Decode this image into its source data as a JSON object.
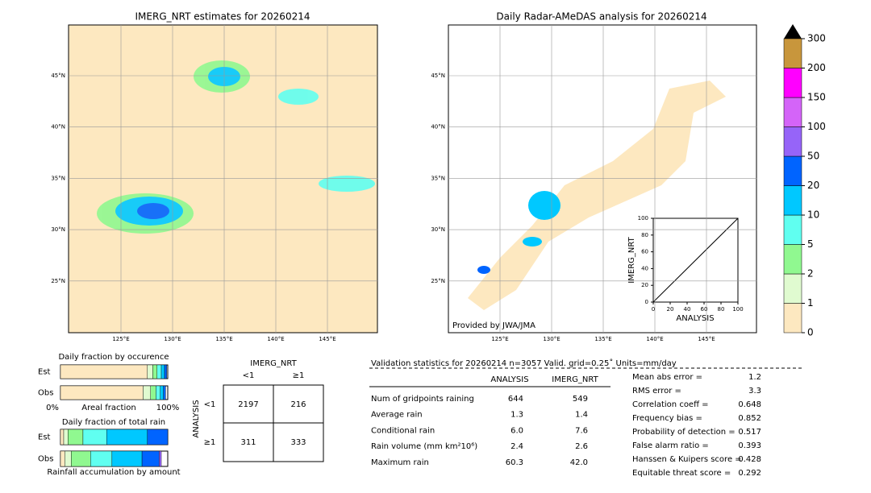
{
  "left_map": {
    "title": "IMERG_NRT estimates for 20260214",
    "lat_labels": [
      "45°N",
      "40°N",
      "35°N",
      "30°N",
      "25°N"
    ],
    "lon_labels": [
      "125°E",
      "130°E",
      "135°E",
      "140°E",
      "145°E"
    ]
  },
  "right_map": {
    "title": "Daily Radar-AMeDAS analysis for 20260214",
    "credit": "Provided by JWA/JMA",
    "lat_labels": [
      "45°N",
      "40°N",
      "35°N",
      "30°N",
      "25°N"
    ],
    "lon_labels": [
      "125°E",
      "130°E",
      "135°E",
      "140°E",
      "145°E"
    ]
  },
  "colorbar": {
    "ticks": [
      0,
      1,
      2,
      5,
      10,
      20,
      50,
      100,
      150,
      200,
      300
    ],
    "colors": [
      "#fde8c0",
      "#e0fbd0",
      "#90f890",
      "#60fff0",
      "#00c8ff",
      "#0064ff",
      "#9664f8",
      "#d464f8",
      "#ff00ff",
      "#c8963c"
    ]
  },
  "inset": {
    "xlabel": "ANALYSIS",
    "ylabel": "IMERG_NRT",
    "ticks": [
      0,
      20,
      40,
      60,
      80,
      100
    ]
  },
  "occurrence": {
    "title": "Daily fraction by occurence",
    "rows": [
      "Est",
      "Obs"
    ],
    "axis_left": "0%",
    "axis_label": "Areal fraction",
    "axis_right": "100%",
    "est": [
      81,
      5,
      4,
      4,
      3,
      2
    ],
    "obs": [
      77,
      7,
      5,
      4,
      3,
      2
    ]
  },
  "total_rain": {
    "title": "Daily fraction of total rain",
    "rows": [
      "Est",
      "Obs"
    ],
    "axis_label": "Rainfall accumulation by amount",
    "est": [
      3,
      4,
      14,
      22,
      38,
      19
    ],
    "obs": [
      4,
      6,
      18,
      20,
      28,
      16,
      2
    ]
  },
  "contingency": {
    "col_title": "IMERG_NRT",
    "row_title": "ANALYSIS",
    "cols": [
      "<1",
      "≥1"
    ],
    "rows": [
      "<1",
      "≥1"
    ],
    "cells": [
      [
        "2197",
        "216"
      ],
      [
        "311",
        "333"
      ]
    ]
  },
  "validation": {
    "header": "Validation statistics for 20260214  n=3057 Valid. grid=0.25˚ Units=mm/day",
    "columns": [
      "ANALYSIS",
      "IMERG_NRT"
    ],
    "rows": [
      {
        "label": "Num of gridpoints raining",
        "values": [
          "644",
          "549"
        ]
      },
      {
        "label": "Average rain",
        "values": [
          "1.3",
          "1.4"
        ]
      },
      {
        "label": "Conditional rain",
        "values": [
          "6.0",
          "7.6"
        ]
      },
      {
        "label": "Rain volume (mm km²10⁶)",
        "values": [
          "2.4",
          "2.6"
        ]
      },
      {
        "label": "Maximum rain",
        "values": [
          "60.3",
          "42.0"
        ]
      }
    ],
    "scores": [
      {
        "label": "Mean abs error =",
        "value": "1.2"
      },
      {
        "label": "RMS error =",
        "value": "3.3"
      },
      {
        "label": "Correlation coeff =",
        "value": "0.648"
      },
      {
        "label": "Frequency bias =",
        "value": "0.852"
      },
      {
        "label": "Probability of detection =",
        "value": "0.517"
      },
      {
        "label": "False alarm ratio =",
        "value": "0.393"
      },
      {
        "label": "Hanssen & Kuipers score =",
        "value": "0.428"
      },
      {
        "label": "Equitable threat score =",
        "value": "0.292"
      }
    ]
  }
}
